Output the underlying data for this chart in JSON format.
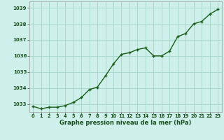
{
  "x": [
    0,
    1,
    2,
    3,
    4,
    5,
    6,
    7,
    8,
    9,
    10,
    11,
    12,
    13,
    14,
    15,
    16,
    17,
    18,
    19,
    20,
    21,
    22,
    23
  ],
  "y": [
    1032.85,
    1032.7,
    1032.8,
    1032.8,
    1032.9,
    1033.1,
    1033.4,
    1033.9,
    1034.05,
    1034.75,
    1035.5,
    1036.1,
    1036.2,
    1036.4,
    1036.5,
    1036.0,
    1036.0,
    1036.3,
    1037.2,
    1037.4,
    1038.0,
    1038.15,
    1038.6,
    1038.9
  ],
  "xlim": [
    -0.5,
    23.5
  ],
  "ylim": [
    1032.5,
    1039.4
  ],
  "yticks": [
    1033,
    1034,
    1035,
    1036,
    1037,
    1038,
    1039
  ],
  "xticks": [
    0,
    1,
    2,
    3,
    4,
    5,
    6,
    7,
    8,
    9,
    10,
    11,
    12,
    13,
    14,
    15,
    16,
    17,
    18,
    19,
    20,
    21,
    22,
    23
  ],
  "xlabel": "Graphe pression niveau de la mer (hPa)",
  "line_color": "#1a5c1a",
  "marker_color": "#1a5c1a",
  "bg_color": "#cff0ea",
  "grid_color": "#a8d8cc",
  "xlabel_color": "#1a5020",
  "tick_color": "#1a5020",
  "marker_size": 2.5,
  "line_width": 1.0,
  "ylabel_fontsize": 5.5,
  "xlabel_fontsize": 6.0,
  "xtick_fontsize": 4.8,
  "ytick_fontsize": 5.0
}
